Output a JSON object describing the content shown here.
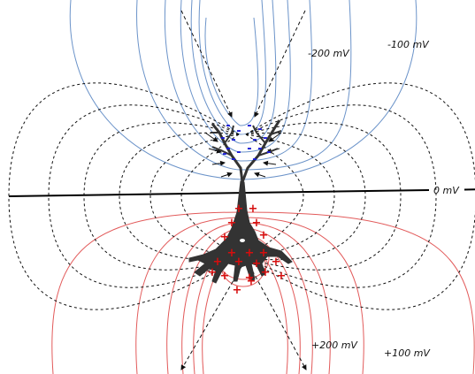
{
  "diagram": {
    "labels": {
      "neg_200": "-200 mV",
      "neg_100": "-100 mV",
      "zero": "0 mV",
      "pos_200": "+200 mV",
      "pos_100": "+100 mV"
    },
    "colors": {
      "negative_isopotential": "#6b93c9",
      "positive_isopotential": "#e25a5a",
      "field_line": "#111111",
      "neuron": "#333333",
      "negative_charge": "#1a1ad6",
      "positive_charge": "#d60e0e",
      "zero_line": "#000000"
    },
    "charges": {
      "negative_symbol": "-",
      "positive_symbol": "+"
    }
  }
}
